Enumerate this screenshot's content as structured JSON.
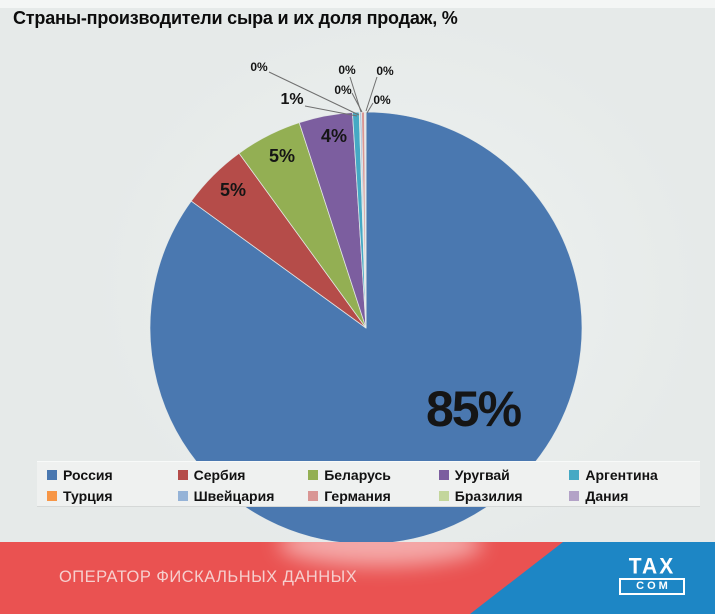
{
  "chart_data": {
    "type": "pie",
    "title": "Страны-производители сыра и их доля продаж, %",
    "unit": "%",
    "legend_position": "bottom",
    "start_angle_deg": 0,
    "direction": "clockwise",
    "slices": [
      {
        "name": "Россия",
        "label": "85%",
        "value": 85,
        "color": "#4a78b0",
        "render_pct": 85
      },
      {
        "name": "Сербия",
        "label": "5%",
        "value": 5,
        "color": "#b54c49",
        "render_pct": 5
      },
      {
        "name": "Беларусь",
        "label": "5%",
        "value": 5,
        "color": "#93af53",
        "render_pct": 5
      },
      {
        "name": "Уругвай",
        "label": "4%",
        "value": 4,
        "color": "#7c5e9f",
        "render_pct": 4
      },
      {
        "name": "Аргентина",
        "label": "1%",
        "value": 1,
        "color": "#45a9c4",
        "render_pct": 0.5
      },
      {
        "name": "Турция",
        "label": "0%",
        "value": 0,
        "color": "#f79646",
        "render_pct": 0.05
      },
      {
        "name": "Швейцария",
        "label": "0%",
        "value": 0,
        "color": "#95b3d7",
        "render_pct": 0.12
      },
      {
        "name": "Германия",
        "label": "0%",
        "value": 0,
        "color": "#d99694",
        "render_pct": 0.22
      },
      {
        "name": "Бразилия",
        "label": "0%",
        "value": 0,
        "color": "#c3d69b",
        "render_pct": 0.05
      },
      {
        "name": "Дания",
        "label": "0%",
        "value": 0,
        "color": "#b3a2c7",
        "render_pct": 0.06
      }
    ]
  },
  "footer": {
    "text": "ОПЕРАТОР ФИСКАЛЬНЫХ ДАННЫХ",
    "logo_top": "TAX",
    "logo_bottom": "COM",
    "red": "#ea5251",
    "blue": "#1d86c5"
  }
}
